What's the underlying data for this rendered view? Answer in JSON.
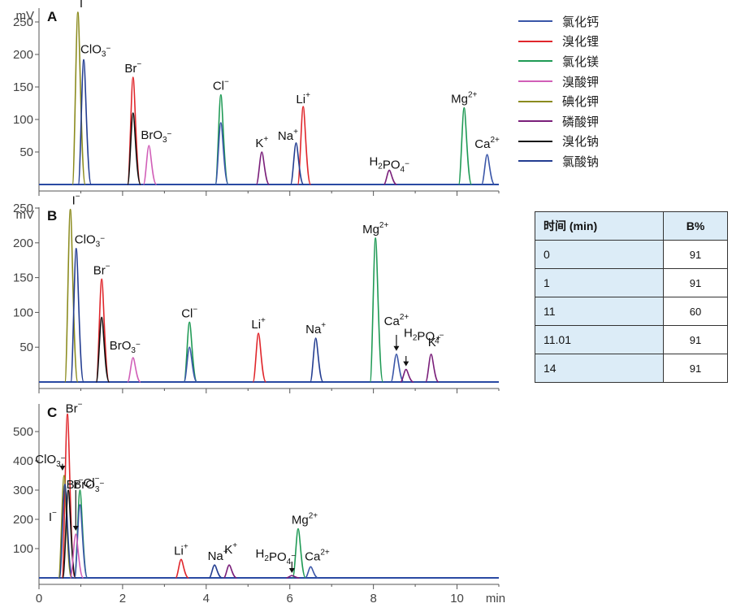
{
  "chart_data": [
    {
      "type": "line",
      "panel": "A",
      "ylabel": "mV",
      "xlabel": "min",
      "xlim": [
        0,
        11
      ],
      "ylim": [
        0,
        275
      ],
      "yticks": [
        50,
        100,
        150,
        200,
        250
      ],
      "xticks": [
        0,
        2,
        4,
        6,
        8,
        10
      ],
      "peaks": [
        {
          "ion": "I",
          "charge": "−",
          "x": 0.93,
          "height": 265,
          "series": "碘化钾"
        },
        {
          "ion": "ClO3",
          "charge": "−",
          "x": 1.07,
          "height": 192,
          "series": "氯酸钠"
        },
        {
          "ion": "Br",
          "charge": "−",
          "x": 2.25,
          "height": 165,
          "series": "溴化锂"
        },
        {
          "ion": "Br",
          "charge": "−",
          "x": 2.25,
          "height": 110,
          "series": "溴化钠"
        },
        {
          "ion": "BrO3",
          "charge": "−",
          "x": 2.63,
          "height": 60,
          "series": "溴酸钾"
        },
        {
          "ion": "Cl",
          "charge": "−",
          "x": 4.35,
          "height": 138,
          "series": "氯化镁"
        },
        {
          "ion": "Cl",
          "charge": "−",
          "x": 4.35,
          "height": 95,
          "series": "氯化钙"
        },
        {
          "ion": "K",
          "charge": "+",
          "x": 5.33,
          "height": 50,
          "series": "磷酸钾"
        },
        {
          "ion": "Na",
          "charge": "+",
          "x": 6.15,
          "height": 64,
          "series": "氯酸钠"
        },
        {
          "ion": "Li",
          "charge": "+",
          "x": 6.32,
          "height": 120,
          "series": "溴化锂"
        },
        {
          "ion": "H2PO4",
          "charge": "−",
          "x": 8.38,
          "height": 22,
          "series": "磷酸钾"
        },
        {
          "ion": "Mg",
          "charge": "2+",
          "x": 10.17,
          "height": 118,
          "series": "氯化镁"
        },
        {
          "ion": "Ca",
          "charge": "2+",
          "x": 10.72,
          "height": 46,
          "series": "氯化钙"
        }
      ]
    },
    {
      "type": "line",
      "panel": "B",
      "ylabel": "mV",
      "xlabel": "min",
      "xlim": [
        0,
        11
      ],
      "ylim": [
        0,
        275
      ],
      "yticks": [
        50,
        100,
        150,
        200,
        250
      ],
      "xticks": [
        0,
        2,
        4,
        6,
        8,
        10
      ],
      "peaks": [
        {
          "ion": "I",
          "charge": "−",
          "x": 0.75,
          "height": 248,
          "series": "碘化钾"
        },
        {
          "ion": "ClO3",
          "charge": "−",
          "x": 0.89,
          "height": 192,
          "series": "氯酸钠"
        },
        {
          "ion": "Br",
          "charge": "−",
          "x": 1.5,
          "height": 148,
          "series": "溴化锂"
        },
        {
          "ion": "Br",
          "charge": "−",
          "x": 1.5,
          "height": 93,
          "series": "溴化钠"
        },
        {
          "ion": "BrO3",
          "charge": "−",
          "x": 2.25,
          "height": 35,
          "series": "溴酸钾"
        },
        {
          "ion": "Cl",
          "charge": "−",
          "x": 3.6,
          "height": 86,
          "series": "氯化镁"
        },
        {
          "ion": "Cl",
          "charge": "−",
          "x": 3.6,
          "height": 50,
          "series": "氯化钙"
        },
        {
          "ion": "Li",
          "charge": "+",
          "x": 5.25,
          "height": 70,
          "series": "溴化锂"
        },
        {
          "ion": "Na",
          "charge": "+",
          "x": 6.62,
          "height": 63,
          "series": "氯酸钠"
        },
        {
          "ion": "Mg",
          "charge": "2+",
          "x": 8.05,
          "height": 207,
          "series": "氯化镁"
        },
        {
          "ion": "Ca",
          "charge": "2+",
          "x": 8.55,
          "height": 40,
          "series": "氯化钙"
        },
        {
          "ion": "H2PO4",
          "charge": "−",
          "x": 8.78,
          "height": 18,
          "series": "磷酸钾"
        },
        {
          "ion": "K",
          "charge": "+",
          "x": 9.38,
          "height": 40,
          "series": "磷酸钾"
        }
      ]
    },
    {
      "type": "line",
      "panel": "C",
      "ylabel": "",
      "xlabel": "min",
      "xlim": [
        0,
        11
      ],
      "ylim": [
        0,
        590
      ],
      "yticks": [
        100,
        200,
        300,
        400,
        500
      ],
      "xticks": [
        0,
        2,
        4,
        6,
        8,
        10
      ],
      "xticklabels": [
        "0",
        "2",
        "4",
        "6",
        "8",
        "10"
      ],
      "peaks": [
        {
          "ion": "I",
          "charge": "−",
          "x": 0.6,
          "height": 350,
          "series": "碘化钾"
        },
        {
          "ion": "ClO3",
          "charge": "−",
          "x": 0.62,
          "height": 320,
          "series": "氯酸钠"
        },
        {
          "ion": "Br",
          "charge": "−",
          "x": 0.68,
          "height": 560,
          "series": "溴化锂"
        },
        {
          "ion": "Br",
          "charge": "−",
          "x": 0.7,
          "height": 300,
          "series": "溴化钠"
        },
        {
          "ion": "BrO3",
          "charge": "−",
          "x": 0.88,
          "height": 150,
          "series": "溴酸钾"
        },
        {
          "ion": "Cl",
          "charge": "−",
          "x": 0.98,
          "height": 300,
          "series": "氯化镁"
        },
        {
          "ion": "Cl",
          "charge": "−",
          "x": 0.98,
          "height": 250,
          "series": "氯化钙"
        },
        {
          "ion": "Li",
          "charge": "+",
          "x": 3.4,
          "height": 63,
          "series": "溴化锂"
        },
        {
          "ion": "Na",
          "charge": "+",
          "x": 4.2,
          "height": 44,
          "series": "氯酸钠"
        },
        {
          "ion": "K",
          "charge": "+",
          "x": 4.55,
          "height": 44,
          "series": "磷酸钾"
        },
        {
          "ion": "H2PO4",
          "charge": "−",
          "x": 6.05,
          "height": 8,
          "series": "磷酸钾"
        },
        {
          "ion": "Mg",
          "charge": "2+",
          "x": 6.2,
          "height": 168,
          "series": "氯化镁"
        },
        {
          "ion": "Ca",
          "charge": "2+",
          "x": 6.5,
          "height": 38,
          "series": "氯化钙"
        }
      ]
    }
  ],
  "axis_text": {
    "mV": "mV",
    "min": "min",
    "panels": [
      "A",
      "B",
      "C"
    ],
    "xticklabels": [
      "0",
      "2",
      "4",
      "6",
      "8",
      "10"
    ]
  },
  "legend": [
    {
      "name": "氯化钙",
      "color": "#3a56a8"
    },
    {
      "name": "溴化锂",
      "color": "#e0262b"
    },
    {
      "name": "氯化镁",
      "color": "#1f9a55"
    },
    {
      "name": "溴酸钾",
      "color": "#d15fb8"
    },
    {
      "name": "碘化钾",
      "color": "#8b8b1e"
    },
    {
      "name": "磷酸钾",
      "color": "#7a1f7a"
    },
    {
      "name": "溴化钠",
      "color": "#111111"
    },
    {
      "name": "氯酸钠",
      "color": "#233d91"
    }
  ],
  "gradient_table": {
    "headers": [
      "时间 (min)",
      "B%"
    ],
    "rows": [
      [
        "0",
        "91"
      ],
      [
        "1",
        "91"
      ],
      [
        "11",
        "60"
      ],
      [
        "11.01",
        "91"
      ],
      [
        "14",
        "91"
      ]
    ]
  }
}
